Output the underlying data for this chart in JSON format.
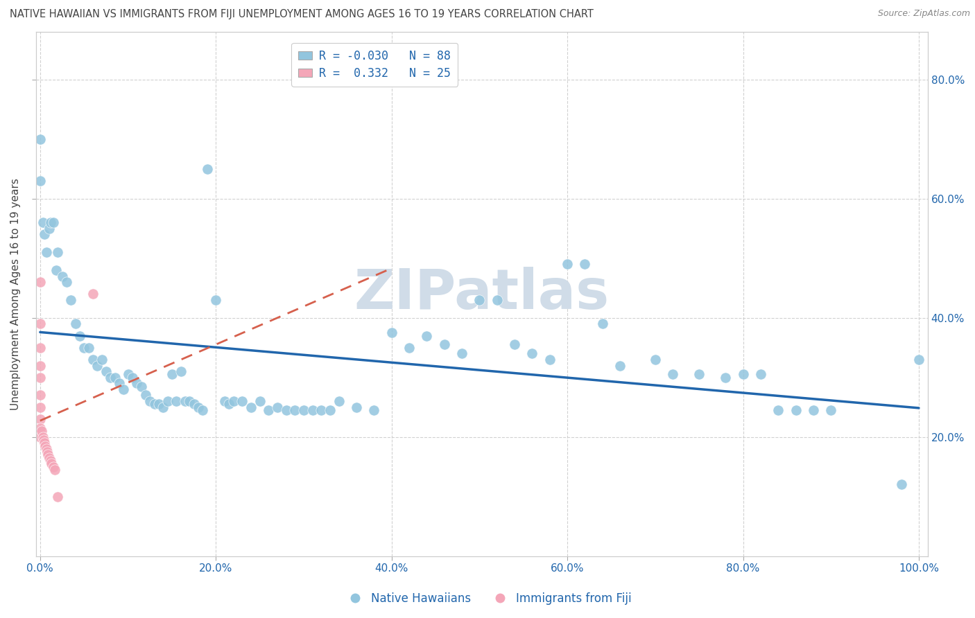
{
  "title": "NATIVE HAWAIIAN VS IMMIGRANTS FROM FIJI UNEMPLOYMENT AMONG AGES 16 TO 19 YEARS CORRELATION CHART",
  "source_text": "Source: ZipAtlas.com",
  "ylabel": "Unemployment Among Ages 16 to 19 years",
  "xlim": [
    -0.005,
    1.01
  ],
  "ylim": [
    0.0,
    0.88
  ],
  "xtick_vals": [
    0.0,
    0.2,
    0.4,
    0.6,
    0.8,
    1.0
  ],
  "ytick_vals": [
    0.2,
    0.4,
    0.6,
    0.8
  ],
  "legend_R1": "-0.030",
  "legend_N1": "88",
  "legend_R2": "0.332",
  "legend_N2": "25",
  "blue_scatter_color": "#92c5de",
  "pink_scatter_color": "#f4a6b8",
  "blue_line_color": "#2166ac",
  "pink_line_color": "#d6604d",
  "grid_color": "#cccccc",
  "text_color": "#2166ac",
  "watermark_color": "#d0dce8",
  "title_color": "#555555",
  "native_hawaiian_x": [
    0.0,
    0.0,
    0.003,
    0.005,
    0.007,
    0.01,
    0.012,
    0.015,
    0.018,
    0.02,
    0.025,
    0.03,
    0.035,
    0.04,
    0.045,
    0.05,
    0.055,
    0.06,
    0.065,
    0.07,
    0.075,
    0.08,
    0.085,
    0.09,
    0.095,
    0.1,
    0.105,
    0.11,
    0.115,
    0.12,
    0.125,
    0.13,
    0.135,
    0.14,
    0.145,
    0.15,
    0.155,
    0.16,
    0.165,
    0.17,
    0.175,
    0.18,
    0.185,
    0.19,
    0.2,
    0.21,
    0.215,
    0.22,
    0.23,
    0.24,
    0.25,
    0.26,
    0.27,
    0.28,
    0.29,
    0.3,
    0.31,
    0.32,
    0.33,
    0.34,
    0.36,
    0.38,
    0.4,
    0.42,
    0.44,
    0.46,
    0.48,
    0.5,
    0.52,
    0.54,
    0.56,
    0.58,
    0.6,
    0.62,
    0.64,
    0.66,
    0.7,
    0.72,
    0.75,
    0.78,
    0.8,
    0.82,
    0.84,
    0.86,
    0.88,
    0.9,
    0.98,
    1.0
  ],
  "native_hawaiian_y": [
    0.7,
    0.63,
    0.56,
    0.54,
    0.51,
    0.55,
    0.56,
    0.56,
    0.48,
    0.51,
    0.47,
    0.46,
    0.43,
    0.39,
    0.37,
    0.35,
    0.35,
    0.33,
    0.32,
    0.33,
    0.31,
    0.3,
    0.3,
    0.29,
    0.28,
    0.305,
    0.3,
    0.29,
    0.285,
    0.27,
    0.26,
    0.255,
    0.255,
    0.25,
    0.26,
    0.305,
    0.26,
    0.31,
    0.26,
    0.26,
    0.255,
    0.25,
    0.245,
    0.65,
    0.43,
    0.26,
    0.255,
    0.26,
    0.26,
    0.25,
    0.26,
    0.245,
    0.25,
    0.245,
    0.245,
    0.245,
    0.245,
    0.245,
    0.245,
    0.26,
    0.25,
    0.245,
    0.375,
    0.35,
    0.37,
    0.355,
    0.34,
    0.43,
    0.43,
    0.355,
    0.34,
    0.33,
    0.49,
    0.49,
    0.39,
    0.32,
    0.33,
    0.305,
    0.305,
    0.3,
    0.305,
    0.305,
    0.245,
    0.245,
    0.245,
    0.245,
    0.12,
    0.33
  ],
  "fiji_x": [
    0.0,
    0.0,
    0.0,
    0.0,
    0.0,
    0.0,
    0.0,
    0.0,
    0.0,
    0.0,
    0.002,
    0.003,
    0.004,
    0.005,
    0.006,
    0.007,
    0.008,
    0.009,
    0.01,
    0.012,
    0.013,
    0.015,
    0.017,
    0.02,
    0.06
  ],
  "fiji_y": [
    0.46,
    0.39,
    0.35,
    0.32,
    0.3,
    0.27,
    0.25,
    0.23,
    0.215,
    0.2,
    0.21,
    0.2,
    0.195,
    0.19,
    0.185,
    0.18,
    0.175,
    0.17,
    0.165,
    0.16,
    0.155,
    0.15,
    0.145,
    0.1,
    0.44
  ]
}
